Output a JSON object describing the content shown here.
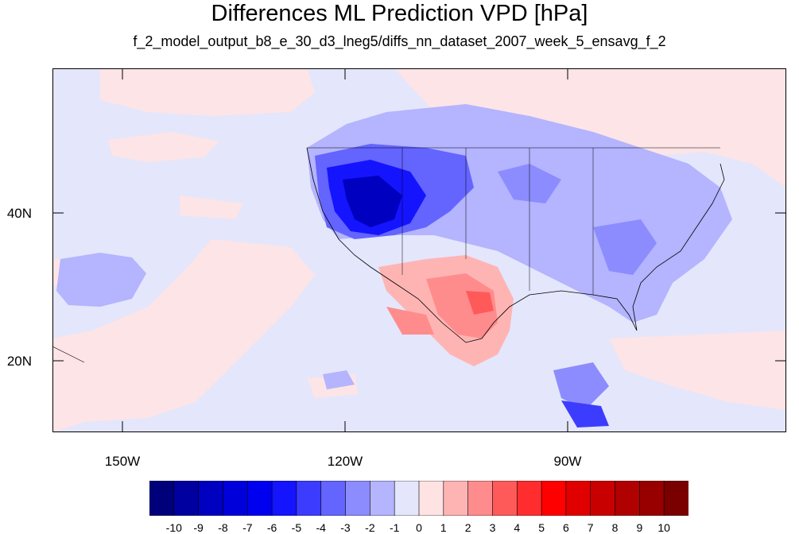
{
  "title": "Differences ML Prediction VPD [hPa]",
  "subtitle": "f_2_model_output_b8_e_30_d3_lneg5/diffs_nn_dataset_2007_week_5_ensavg_f_2",
  "map": {
    "projection": "cylindrical-equidistant",
    "lon_range": [
      -159.3,
      -61
    ],
    "lat_range": [
      10.5,
      59.5
    ],
    "lat_labels": [
      {
        "value": 40,
        "text": "40N"
      },
      {
        "value": 20,
        "text": "20N"
      }
    ],
    "lon_labels": [
      {
        "value": -150,
        "text": "150W"
      },
      {
        "value": -120,
        "text": "120W"
      },
      {
        "value": -90,
        "text": "90W"
      }
    ],
    "background_color": "#e4e6fb"
  },
  "colorbar": {
    "labels": [
      "-10",
      "-9",
      "-8",
      "-7",
      "-6",
      "-5",
      "-4",
      "-3",
      "-2",
      "-1",
      "0",
      "1",
      "2",
      "3",
      "4",
      "5",
      "6",
      "7",
      "8",
      "9",
      "10"
    ],
    "colors": [
      "#00007a",
      "#0000a0",
      "#0000c0",
      "#0000db",
      "#0000f0",
      "#1414ff",
      "#3c3cff",
      "#6464ff",
      "#8c8cff",
      "#b4b4ff",
      "#e4e6fb",
      "#ffe3e3",
      "#ffb4b4",
      "#ff8c8c",
      "#ff5a5a",
      "#ff2d2d",
      "#ff0000",
      "#e00000",
      "#c80000",
      "#b00000",
      "#980000",
      "#7a0000"
    ]
  }
}
